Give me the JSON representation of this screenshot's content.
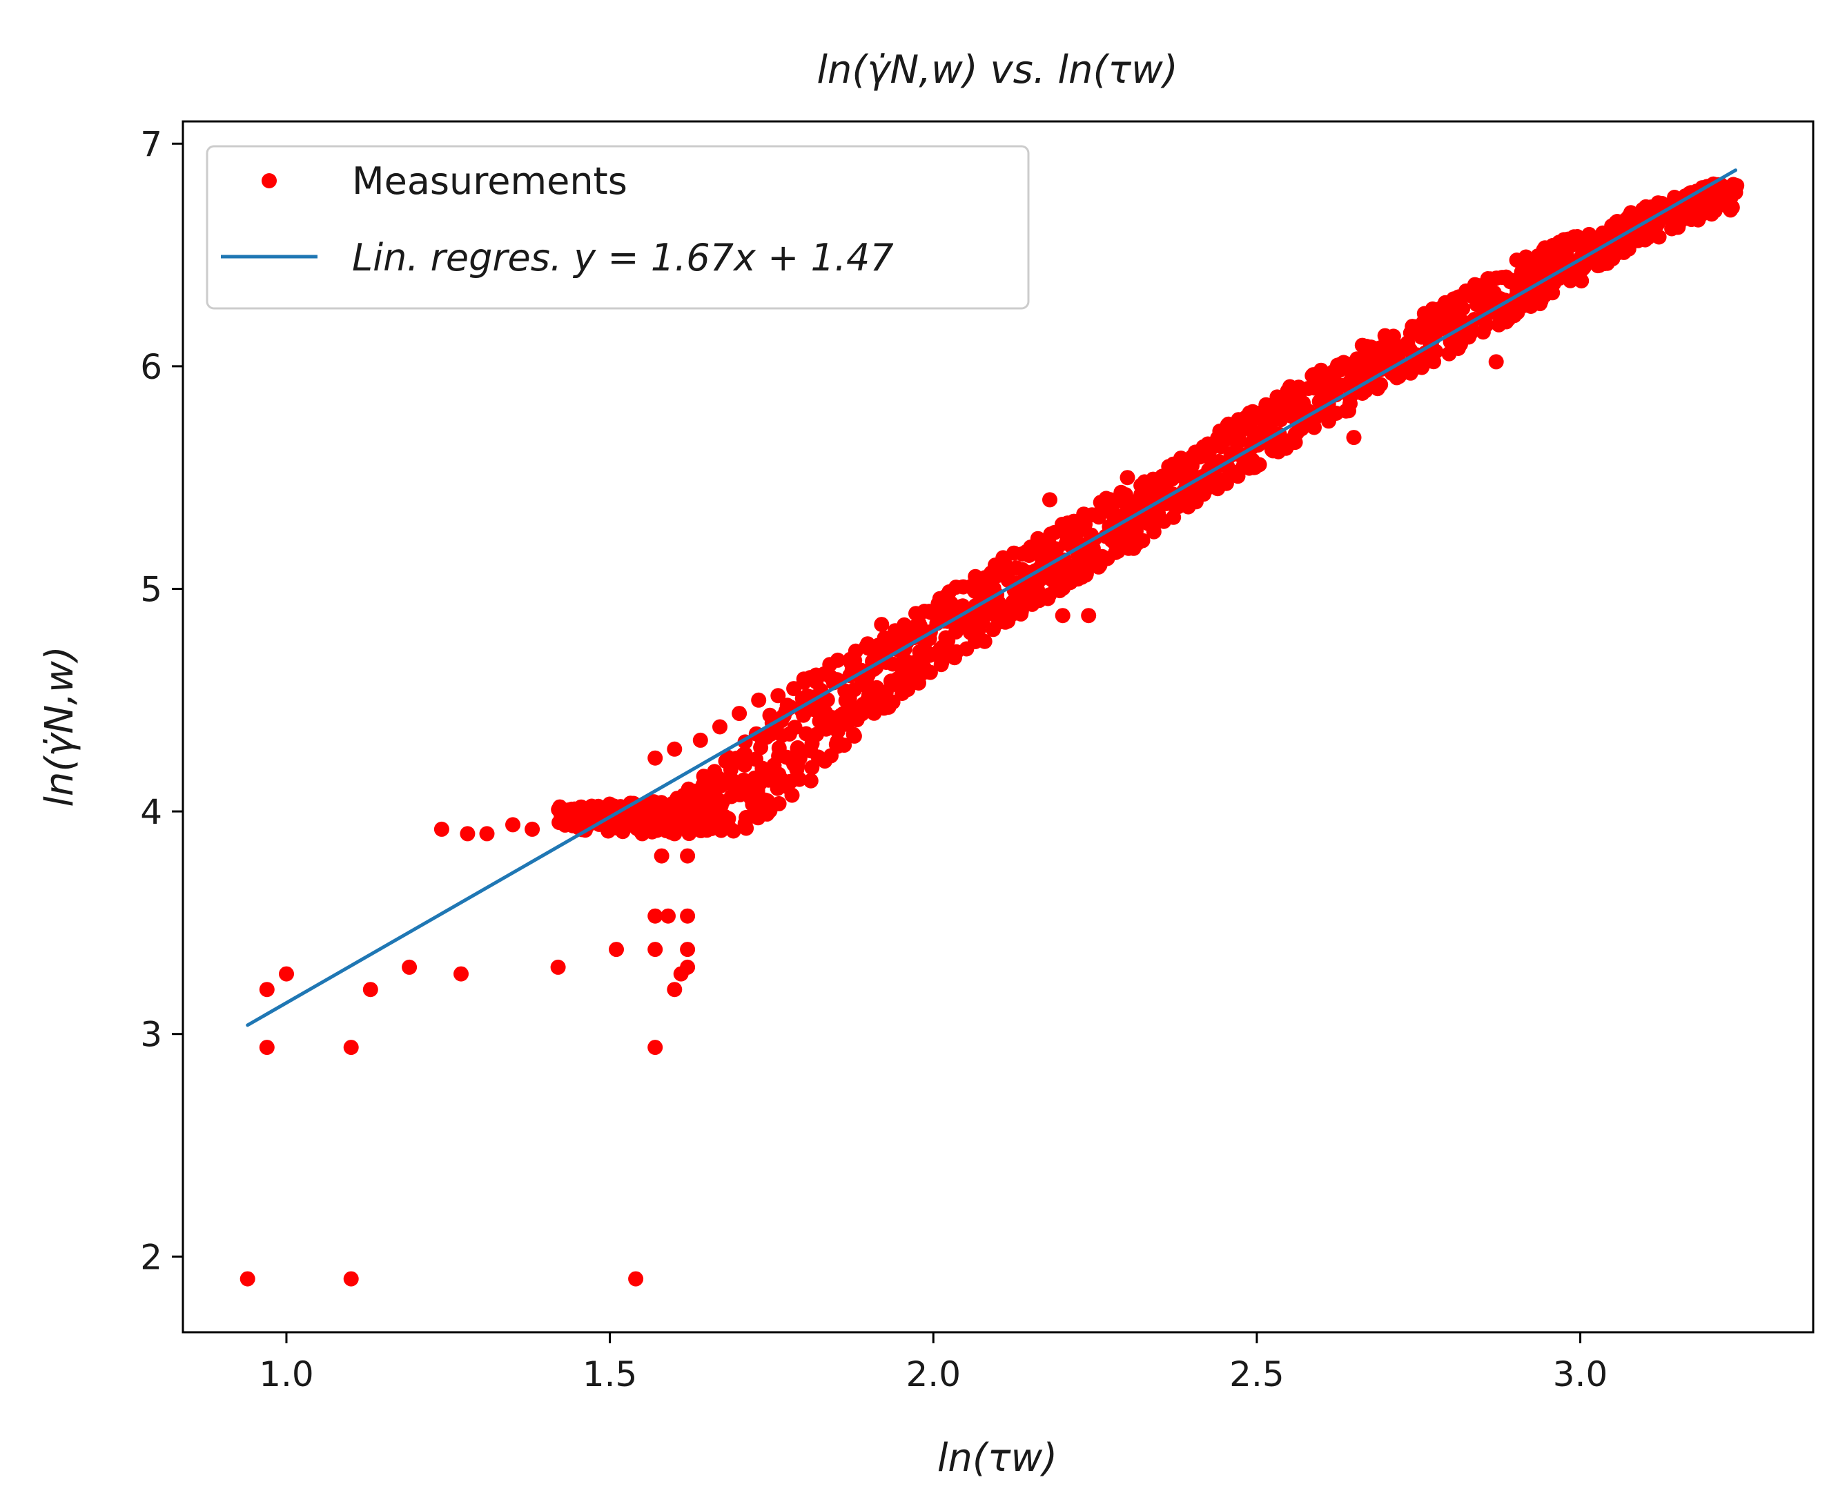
{
  "chart_data": {
    "type": "scatter",
    "title": "ln(γ̇N,w) vs. ln(τw)",
    "xlabel": "ln(τw)",
    "ylabel": "ln(γ̇N,w)",
    "xlim": [
      0.84,
      3.36
    ],
    "ylim": [
      1.66,
      7.1
    ],
    "xticks": [
      "1.0",
      "1.5",
      "2.0",
      "2.5",
      "3.0"
    ],
    "yticks": [
      "2",
      "3",
      "4",
      "5",
      "6",
      "7"
    ],
    "grid": false,
    "legend_position": "upper-left",
    "series": [
      {
        "name": "Measurements",
        "kind": "points",
        "color": "#ff0000",
        "outliers": [
          [
            0.94,
            1.9
          ],
          [
            1.1,
            1.9
          ],
          [
            1.54,
            1.9
          ],
          [
            0.97,
            2.94
          ],
          [
            1.1,
            2.94
          ],
          [
            1.57,
            2.94
          ],
          [
            0.97,
            3.2
          ],
          [
            1.0,
            3.27
          ],
          [
            1.13,
            3.2
          ],
          [
            1.19,
            3.3
          ],
          [
            1.27,
            3.27
          ],
          [
            1.42,
            3.3
          ],
          [
            1.51,
            3.38
          ],
          [
            1.57,
            3.38
          ],
          [
            1.6,
            3.2
          ],
          [
            1.61,
            3.27
          ],
          [
            1.62,
            3.38
          ],
          [
            1.62,
            3.3
          ],
          [
            1.57,
            3.53
          ],
          [
            1.59,
            3.53
          ],
          [
            1.62,
            3.53
          ],
          [
            1.58,
            3.8
          ],
          [
            1.62,
            3.8
          ],
          [
            1.55,
            3.9
          ],
          [
            1.6,
            3.9
          ],
          [
            1.24,
            3.92
          ],
          [
            1.28,
            3.9
          ],
          [
            1.31,
            3.9
          ],
          [
            1.35,
            3.94
          ],
          [
            1.38,
            3.92
          ],
          [
            1.57,
            4.24
          ],
          [
            1.6,
            4.28
          ],
          [
            1.64,
            4.32
          ],
          [
            1.67,
            4.38
          ],
          [
            1.7,
            4.44
          ],
          [
            1.73,
            4.5
          ],
          [
            1.76,
            4.52
          ],
          [
            1.8,
            4.58
          ],
          [
            1.84,
            4.66
          ],
          [
            1.88,
            4.72
          ],
          [
            1.92,
            4.84
          ],
          [
            1.91,
            4.68
          ],
          [
            2.1,
            5.06
          ],
          [
            2.2,
            4.88
          ],
          [
            2.24,
            4.88
          ],
          [
            2.18,
            5.4
          ],
          [
            2.3,
            5.5
          ],
          [
            2.65,
            5.68
          ],
          [
            2.87,
            6.02
          ],
          [
            3.22,
            6.78
          ],
          [
            3.23,
            6.74
          ]
        ],
        "band": {
          "lower": [
            [
              1.42,
              3.92
            ],
            [
              1.6,
              3.9
            ],
            [
              1.7,
              3.9
            ],
            [
              1.8,
              4.1
            ],
            [
              1.9,
              4.4
            ],
            [
              2.0,
              4.62
            ],
            [
              2.1,
              4.8
            ],
            [
              2.2,
              5.0
            ],
            [
              2.3,
              5.16
            ],
            [
              2.4,
              5.38
            ],
            [
              2.5,
              5.55
            ],
            [
              2.6,
              5.72
            ],
            [
              2.7,
              5.9
            ],
            [
              2.8,
              6.06
            ],
            [
              2.9,
              6.22
            ],
            [
              3.0,
              6.38
            ],
            [
              3.1,
              6.55
            ],
            [
              3.2,
              6.68
            ],
            [
              3.24,
              6.7
            ]
          ],
          "upper": [
            [
              1.42,
              4.02
            ],
            [
              1.6,
              4.05
            ],
            [
              1.7,
              4.3
            ],
            [
              1.8,
              4.6
            ],
            [
              1.9,
              4.78
            ],
            [
              2.0,
              4.95
            ],
            [
              2.1,
              5.14
            ],
            [
              2.2,
              5.3
            ],
            [
              2.3,
              5.46
            ],
            [
              2.4,
              5.64
            ],
            [
              2.5,
              5.82
            ],
            [
              2.6,
              6.0
            ],
            [
              2.7,
              6.15
            ],
            [
              2.8,
              6.3
            ],
            [
              2.9,
              6.48
            ],
            [
              3.0,
              6.6
            ],
            [
              3.1,
              6.72
            ],
            [
              3.2,
              6.82
            ],
            [
              3.24,
              6.82
            ]
          ]
        }
      },
      {
        "name": "Lin. regres. y = 1.67x + 1.47",
        "kind": "line",
        "color": "#1f77b4",
        "slope": 1.67,
        "intercept": 1.47,
        "x_range": [
          0.94,
          3.24
        ]
      }
    ]
  }
}
